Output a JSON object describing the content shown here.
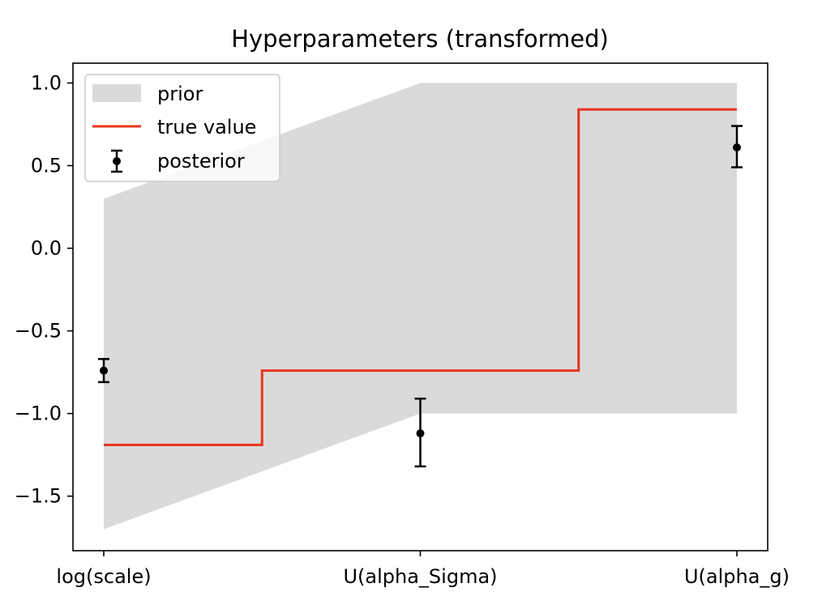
{
  "chart_data": {
    "type": "line",
    "title": "Hyperparameters (transformed)",
    "xlabel": "",
    "ylabel": "",
    "categories": [
      "log(scale)",
      "U(alpha_Sigma)",
      "U(alpha_g)"
    ],
    "ylim": [
      -1.83,
      1.12
    ],
    "yticks": [
      1.0,
      0.5,
      0.0,
      -0.5,
      -1.0,
      -1.5
    ],
    "ytick_labels": [
      "1.0",
      "0.5",
      "0.0",
      "−0.5",
      "−1.0",
      "−1.5"
    ],
    "grid": false,
    "legend": {
      "location": "top-left",
      "entries": [
        "prior",
        "true value",
        "posterior"
      ]
    },
    "series": [
      {
        "name": "prior",
        "kind": "band",
        "color": "#dadada",
        "x": [
          0,
          1,
          2
        ],
        "lower": [
          -1.7,
          -1.0,
          -1.0
        ],
        "upper": [
          0.3,
          1.0,
          1.0
        ]
      },
      {
        "name": "true value",
        "kind": "step-mid",
        "color": "#e8341c",
        "x": [
          0,
          1,
          2
        ],
        "values": [
          -1.19,
          -0.74,
          0.84
        ]
      },
      {
        "name": "posterior",
        "kind": "errorbar",
        "color": "#000000",
        "x": [
          0,
          1,
          2
        ],
        "values": [
          -0.74,
          -1.12,
          0.61
        ],
        "err_low": [
          0.07,
          0.2,
          0.12
        ],
        "err_high": [
          0.07,
          0.21,
          0.13
        ]
      }
    ]
  }
}
